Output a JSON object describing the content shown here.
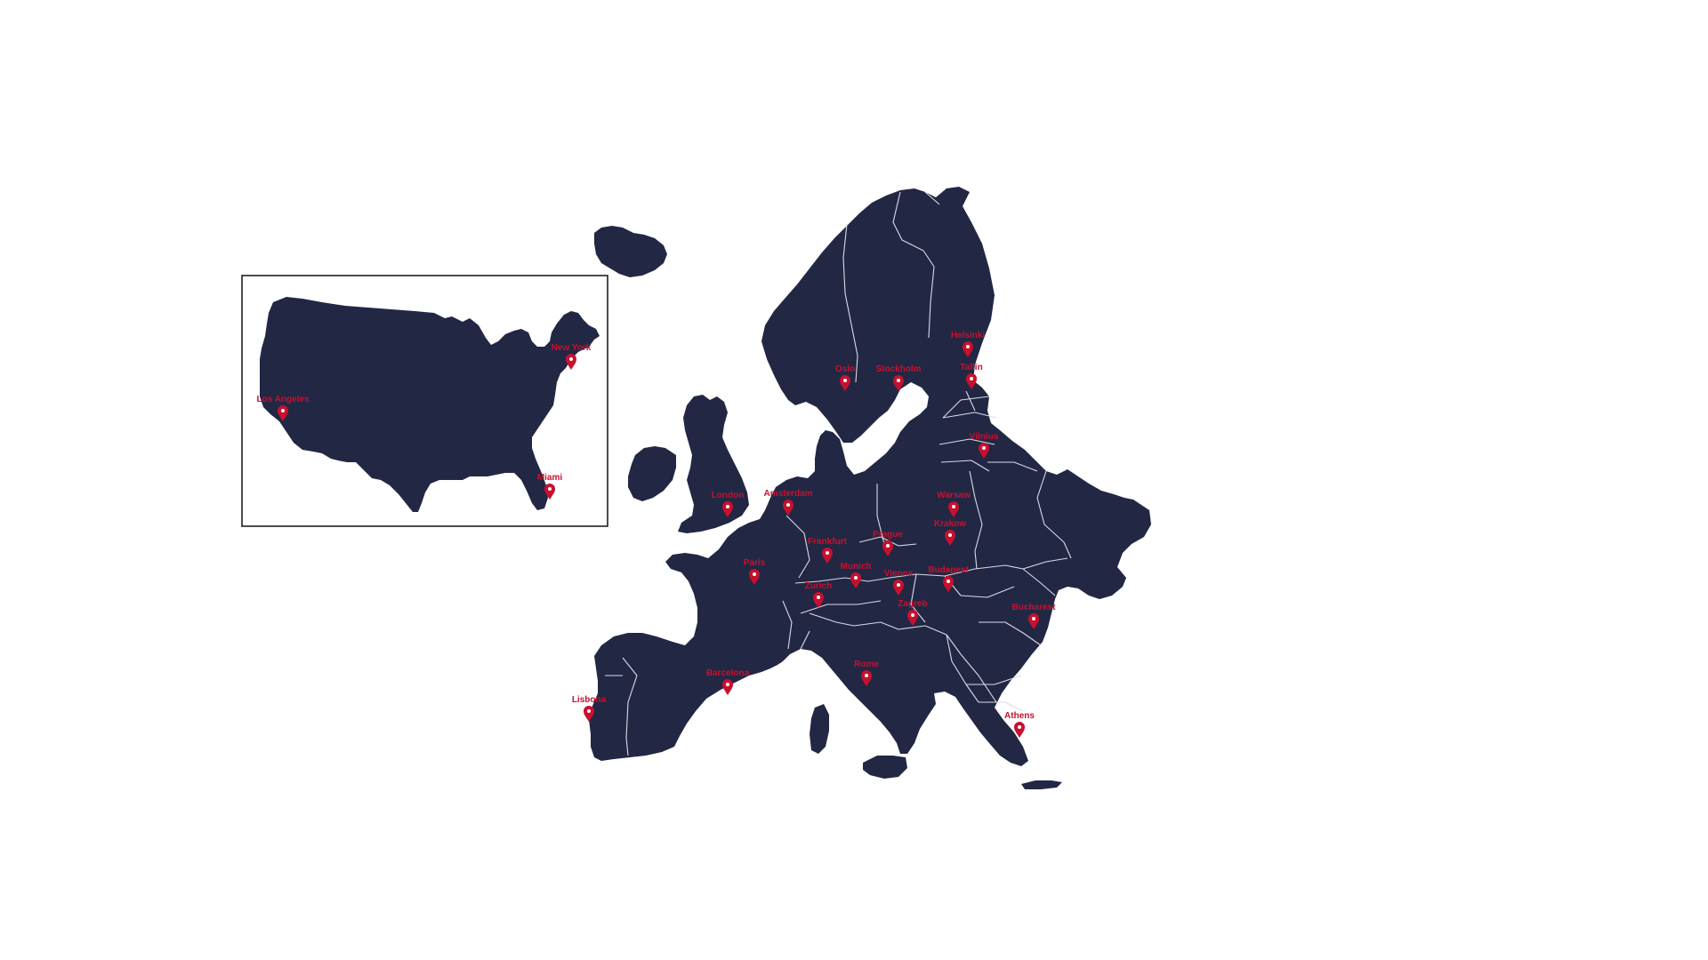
{
  "colors": {
    "land": "#222744",
    "borders": "#d9dbe6",
    "marker": "#c8102e",
    "label": "#c8102e",
    "background": "#ffffff"
  },
  "icons": {
    "marker": "map-pin-icon"
  },
  "inset": {
    "region": "United States",
    "cities": [
      "New York",
      "Los Angeles",
      "Miami"
    ]
  },
  "main": {
    "region": "Europe",
    "cities": [
      "Helsinki",
      "Oslo",
      "Stockholm",
      "Tallin",
      "Vilnius",
      "London",
      "Amsterdam",
      "Warsaw",
      "Krakow",
      "Frankfurt",
      "Prague",
      "Paris",
      "Munich",
      "Vienna",
      "Budapest",
      "Zurich",
      "Zagreb",
      "Bucharest",
      "Rome",
      "Barcelona",
      "Lisbona",
      "Athens"
    ]
  }
}
